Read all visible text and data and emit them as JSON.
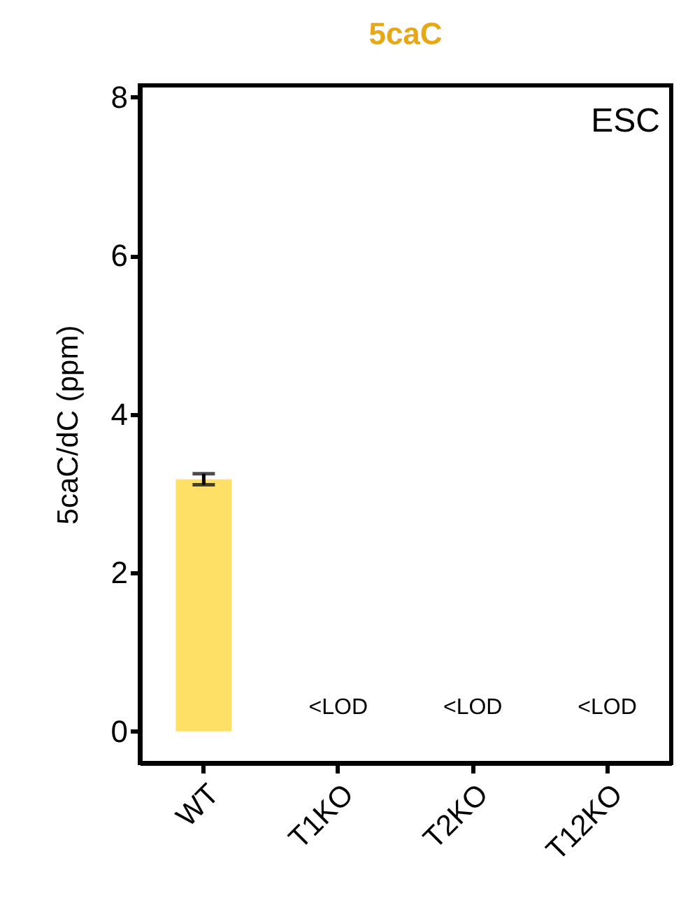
{
  "chart_data": {
    "type": "bar",
    "title": "5caC",
    "ylabel": "5caC/dC (ppm)",
    "categories": [
      "WT",
      "T1KO",
      "T2KO",
      "T12KO"
    ],
    "values": [
      3.18,
      null,
      null,
      null
    ],
    "errors": [
      0.07,
      null,
      null,
      null
    ],
    "color": "#ffe066",
    "ylim": [
      -0.4,
      8.15
    ],
    "yticks": [
      0,
      2,
      4,
      6,
      8
    ],
    "annotations": [
      "ESC",
      "<LOD",
      "<LOD",
      "<LOD"
    ]
  }
}
